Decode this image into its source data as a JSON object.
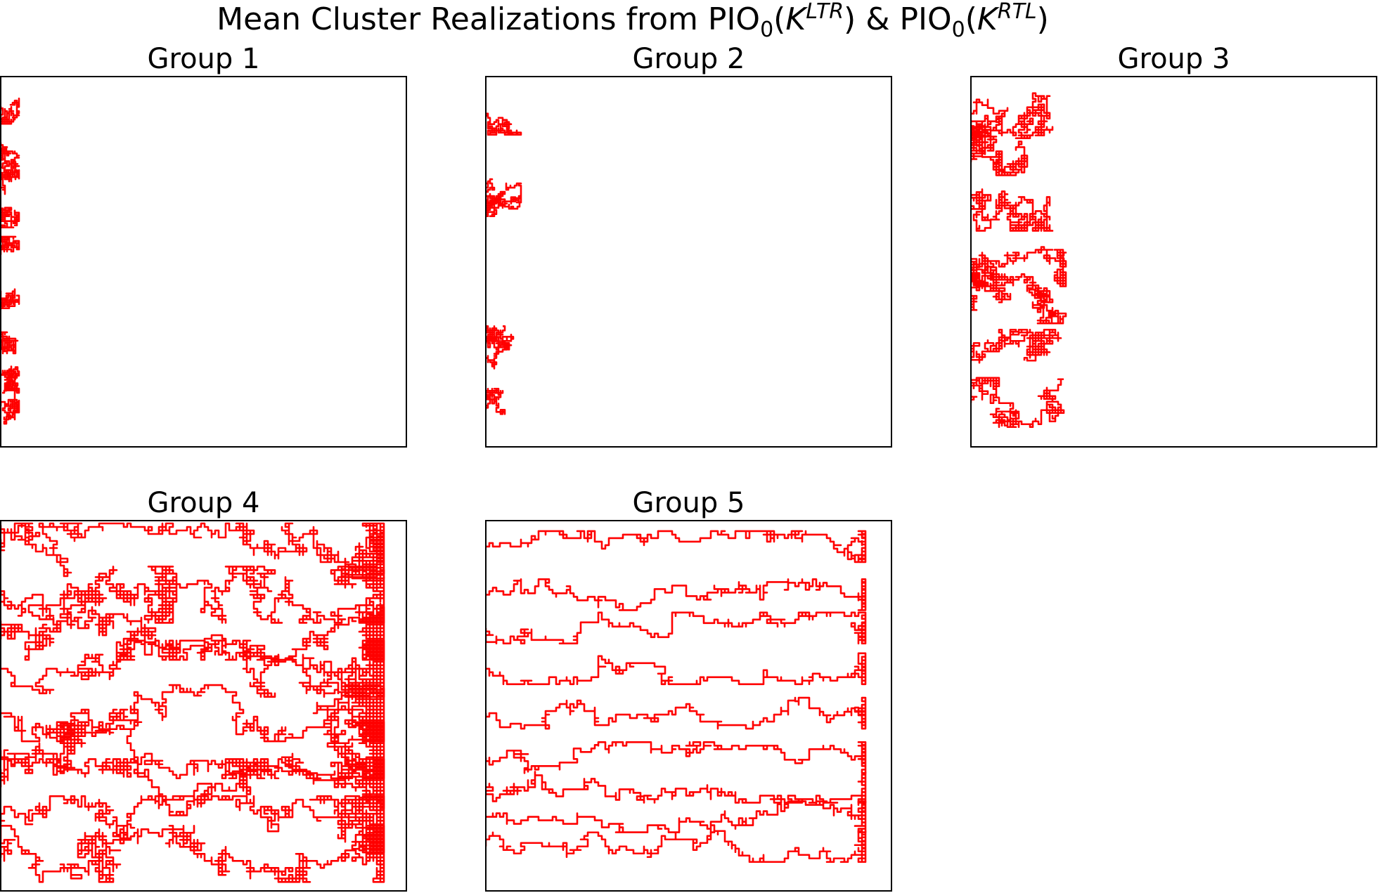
{
  "title": [
    "Mean Cluster Realizations from PIO",
    "0",
    "(",
    "K",
    "LTR",
    ") & PIO",
    "0",
    "(",
    "K",
    "RTL",
    ")"
  ],
  "groups": [
    {
      "title": "Group 1"
    },
    {
      "title": "Group 2"
    },
    {
      "title": "Group 3"
    },
    {
      "title": "Group 4"
    },
    {
      "title": "Group 5"
    }
  ]
}
